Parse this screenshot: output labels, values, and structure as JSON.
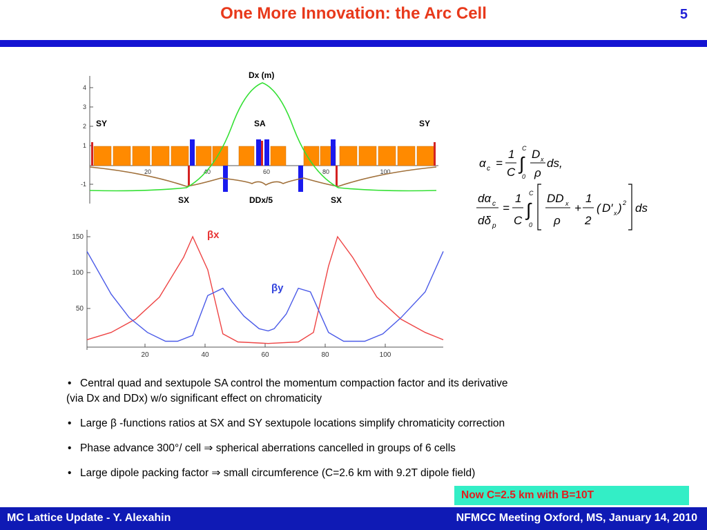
{
  "header": {
    "title": "One More Innovation: the Arc Cell",
    "slide_number": "5"
  },
  "lattice_plot": {
    "label_top": "Dx (m)",
    "labels_upper": [
      "SY",
      "SA",
      "SY"
    ],
    "labels_lower": [
      "SX",
      "DDx/5",
      "SX"
    ],
    "y_ticks": [
      "4",
      "3",
      "2",
      "1",
      "-1"
    ],
    "x_ticks": [
      "20",
      "40",
      "60",
      "80",
      "100"
    ],
    "colors": {
      "dispersion": "#33e033",
      "ddx": "#a0703a",
      "dipole": "#ff8a00",
      "quad": "#1a1aee",
      "sextupole": "#d42222"
    }
  },
  "beta_plot": {
    "labels": {
      "beta_x": "βx",
      "beta_y": "βy"
    },
    "y_ticks": [
      "150",
      "100",
      "50"
    ],
    "x_ticks": [
      "20",
      "40",
      "60",
      "80",
      "100"
    ],
    "colors": {
      "beta_x": "#ee4444",
      "beta_y": "#4a5ae8"
    }
  },
  "chart_data": {
    "type": "line",
    "x_range": [
      0,
      118
    ],
    "y_range": [
      0,
      155
    ],
    "series": [
      {
        "name": "βx",
        "x": [
          0,
          8,
          16,
          24,
          32,
          35,
          40,
          45,
          50,
          60,
          70,
          75,
          80,
          83,
          88,
          96,
          104,
          112,
          118
        ],
        "y": [
          10,
          20,
          38,
          68,
          122,
          150,
          105,
          18,
          7,
          5,
          7,
          20,
          110,
          150,
          122,
          68,
          38,
          20,
          10
        ]
      },
      {
        "name": "βy",
        "x": [
          0,
          8,
          14,
          20,
          26,
          30,
          35,
          40,
          45,
          48,
          52,
          57,
          60,
          62,
          66,
          70,
          74,
          80,
          85,
          92,
          98,
          104,
          112,
          118
        ],
        "y": [
          130,
          72,
          40,
          20,
          8,
          8,
          16,
          70,
          80,
          62,
          42,
          25,
          22,
          25,
          45,
          80,
          75,
          20,
          8,
          8,
          18,
          40,
          75,
          130
        ]
      }
    ]
  },
  "bullets": [
    {
      "line1": "Central  quad and sextupole SA control the momentum compaction factor and its derivative",
      "line2": "(via Dx and DDx) w/o significant effect on chromaticity"
    },
    {
      "line1": "Large β -functions ratios at SX and SY sextupole locations simplify chromaticity  correction"
    },
    {
      "line1": "Phase advance 300°/ cell ⇒ spherical aberrations cancelled in groups of 6 cells"
    },
    {
      "line1": "Large dipole packing factor ⇒ small circumference (C=2.6 km with 9.2T dipole field)"
    }
  ],
  "note": "Now C=2.5 km with B=10T",
  "footer": {
    "left": "MC Lattice Update - Y. Alexahin",
    "right": "NFMCC Meeting Oxford, MS,  January 14, 2010"
  }
}
